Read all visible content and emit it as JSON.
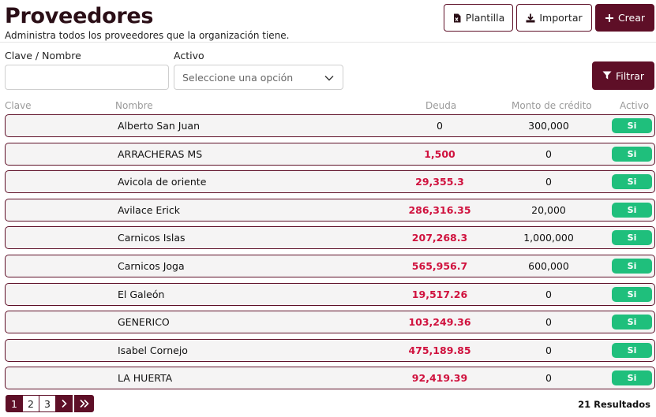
{
  "header": {
    "title": "Proveedores",
    "subtitle": "Administra todos los proveedores que la organización tiene."
  },
  "actions": {
    "plantilla_label": "Plantilla",
    "importar_label": "Importar",
    "crear_label": "Crear"
  },
  "filters": {
    "clave_label": "Clave / Nombre",
    "clave_value": "",
    "activo_label": "Activo",
    "activo_placeholder": "Seleccione una opción",
    "filtrar_label": "Filtrar"
  },
  "table": {
    "headers": {
      "clave": "Clave",
      "nombre": "Nombre",
      "deuda": "Deuda",
      "monto": "Monto de crédito",
      "activo": "Activo"
    },
    "rows": [
      {
        "clave": "",
        "nombre": "Alberto San Juan",
        "deuda": "0",
        "monto": "300,000",
        "activo": "Si"
      },
      {
        "clave": "",
        "nombre": "ARRACHERAS MS",
        "deuda": "1,500",
        "monto": "0",
        "activo": "Si"
      },
      {
        "clave": "",
        "nombre": "Avicola de oriente",
        "deuda": "29,355.3",
        "monto": "0",
        "activo": "Si"
      },
      {
        "clave": "",
        "nombre": "Avilace Erick",
        "deuda": "286,316.35",
        "monto": "20,000",
        "activo": "Si"
      },
      {
        "clave": "",
        "nombre": "Carnicos Islas",
        "deuda": "207,268.3",
        "monto": "1,000,000",
        "activo": "Si"
      },
      {
        "clave": "",
        "nombre": "Carnicos Joga",
        "deuda": "565,956.7",
        "monto": "600,000",
        "activo": "Si"
      },
      {
        "clave": "",
        "nombre": "El Galeón",
        "deuda": "19,517.26",
        "monto": "0",
        "activo": "Si"
      },
      {
        "clave": "",
        "nombre": "GENERICO",
        "deuda": "103,249.36",
        "monto": "0",
        "activo": "Si"
      },
      {
        "clave": "",
        "nombre": "Isabel Cornejo",
        "deuda": "475,189.85",
        "monto": "0",
        "activo": "Si"
      },
      {
        "clave": "",
        "nombre": "LA HUERTA",
        "deuda": "92,419.39",
        "monto": "0",
        "activo": "Si"
      }
    ]
  },
  "pagination": {
    "pages": [
      "1",
      "2",
      "3"
    ],
    "current": "1",
    "next": "›",
    "last": "»"
  },
  "results_text": "21 Resultados",
  "colors": {
    "brand": "#5e0f27",
    "debt": "#d0123e",
    "active_badge": "#1fbf7c"
  },
  "icons": {
    "plantilla": "excel-file-icon",
    "importar": "download-icon",
    "crear": "plus-icon",
    "select": "chevron-down-icon",
    "filtrar": "filter-icon"
  }
}
